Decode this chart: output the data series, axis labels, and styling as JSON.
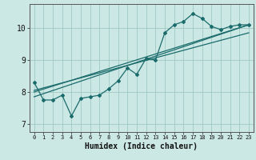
{
  "xlabel": "Humidex (Indice chaleur)",
  "ylabel": "",
  "bg_color": "#cce8e5",
  "grid_color": "#a0c8c4",
  "line_color": "#1a6b6b",
  "xlim": [
    -0.5,
    23.5
  ],
  "ylim": [
    6.75,
    10.75
  ],
  "x_ticks": [
    0,
    1,
    2,
    3,
    4,
    5,
    6,
    7,
    8,
    9,
    10,
    11,
    12,
    13,
    14,
    15,
    16,
    17,
    18,
    19,
    20,
    21,
    22,
    23
  ],
  "y_ticks": [
    7,
    8,
    9,
    10
  ],
  "line1_x": [
    0,
    1,
    2,
    3,
    4,
    5,
    6,
    7,
    8,
    9,
    10,
    11,
    12,
    13,
    14,
    15,
    16,
    17,
    18,
    19,
    20,
    21,
    22,
    23
  ],
  "line1_y": [
    8.3,
    7.75,
    7.75,
    7.9,
    7.25,
    7.8,
    7.85,
    7.9,
    8.1,
    8.35,
    8.75,
    8.55,
    9.05,
    9.0,
    9.85,
    10.1,
    10.2,
    10.45,
    10.3,
    10.05,
    9.95,
    10.05,
    10.1,
    10.1
  ],
  "line2_x": [
    0,
    23
  ],
  "line2_y": [
    7.85,
    10.1
  ],
  "line3_x": [
    0,
    23
  ],
  "line3_y": [
    8.0,
    10.1
  ],
  "line4_x": [
    0,
    23
  ],
  "line4_y": [
    8.05,
    9.85
  ]
}
